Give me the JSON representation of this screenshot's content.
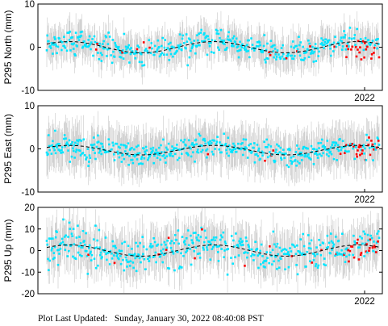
{
  "footer": {
    "text": "Plot Last Updated:   Sunday, January 30, 2022 08:40:08 PST"
  },
  "colors": {
    "good": "#00e5ff",
    "flagged": "#ff0000",
    "error_bar": "#c8c8c8",
    "model": "#000000"
  },
  "chart_data": [
    {
      "type": "scatter",
      "ylabel": "P295 North (mm)",
      "ylim": [
        -10,
        10
      ],
      "yticks": [
        -10,
        0,
        10
      ],
      "xtick_label": "2022",
      "model_curve": {
        "amplitude_mm": 1.3,
        "cycles": 2.3,
        "offset_mm": 0
      },
      "scatter_sd_mm": 1.4,
      "error_bar_mm": 3.5,
      "flagged_recent_mm": -1.3
    },
    {
      "type": "scatter",
      "ylabel": "P295 East (mm)",
      "ylim": [
        -10,
        10
      ],
      "yticks": [
        -10,
        0,
        10
      ],
      "xtick_label": "2022",
      "model_curve": {
        "amplitude_mm": 1.1,
        "cycles": 2.3,
        "offset_mm": -0.3
      },
      "scatter_sd_mm": 1.3,
      "error_bar_mm": 4.5,
      "flagged_recent_mm": 0.6
    },
    {
      "type": "scatter",
      "ylabel": "P295 Up (mm)",
      "ylim": [
        -20,
        20
      ],
      "yticks": [
        -20,
        -10,
        0,
        10,
        20
      ],
      "xtick_label": "2022",
      "model_curve": {
        "amplitude_mm": 2.6,
        "cycles": 2.3,
        "offset_mm": 0
      },
      "scatter_sd_mm": 4.0,
      "error_bar_mm": 9.0,
      "flagged_recent_mm": 0.5
    }
  ]
}
